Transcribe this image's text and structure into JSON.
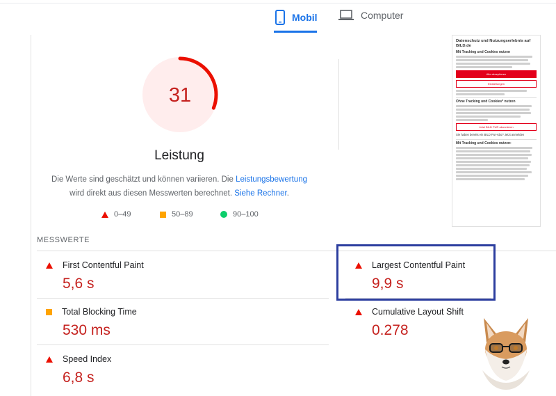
{
  "tabs": {
    "mobile_label": "Mobil",
    "desktop_label": "Computer"
  },
  "score": {
    "value": "31",
    "fraction": 0.31,
    "label": "Leistung",
    "color": "#eb0f00"
  },
  "description": {
    "text1": "Die Werte sind geschätzt und können variieren. Die ",
    "link1": "Leistungsbewertung",
    "text2": "wird direkt aus diesen Messwerten berechnet. ",
    "link2": "Siehe Rechner",
    "text3": "."
  },
  "legend": {
    "poor": "0–49",
    "average": "50–89",
    "good": "90–100"
  },
  "screenshot_preview": {
    "title": "Datenschutz und Nutzungserlebnis auf BILD.de",
    "heading1": "Mit Tracking und Cookies nutzen",
    "button_accept": "Alle akzeptieren",
    "button_settings": "Einstellungen",
    "heading2": "Ohne Tracking und Cookies* nutzen",
    "button_pur": "Jetzt BILD PUR abonnieren",
    "note": "Sie haben bereits ein BILD Pur-Abo? Jetzt anmelden",
    "heading3": "Mit Tracking und Cookies nutzen:"
  },
  "metrics": {
    "section_title": "MESSWERTE",
    "fcp": {
      "label": "First Contentful Paint",
      "value": "5,6 s"
    },
    "lcp": {
      "label": "Largest Contentful Paint",
      "value": "9,9 s"
    },
    "tbt": {
      "label": "Total Blocking Time",
      "value": "530 ms"
    },
    "cls": {
      "label": "Cumulative Layout Shift",
      "value": "0.278"
    },
    "si": {
      "label": "Speed Index",
      "value": "6,8 s"
    }
  },
  "colors": {
    "accent": "#1a73e8",
    "poor": "#eb0f00",
    "average": "#ffa400",
    "good": "#0cce6b",
    "highlight": "#2c3e9f"
  }
}
